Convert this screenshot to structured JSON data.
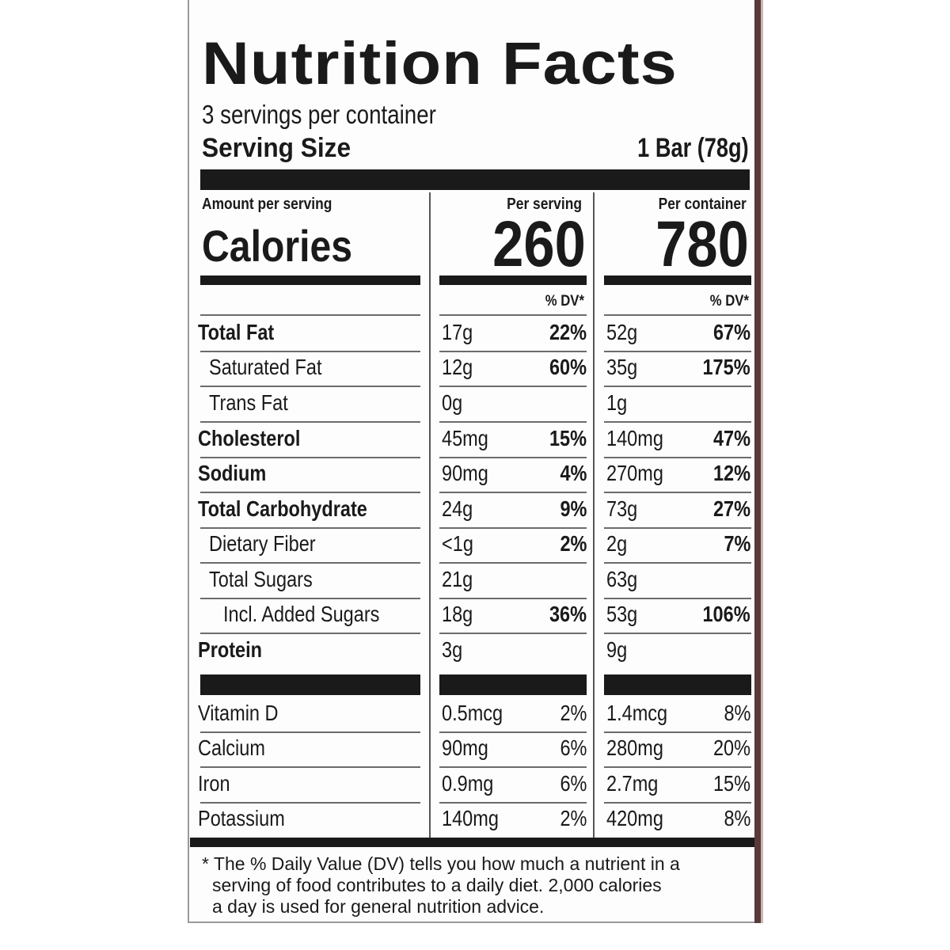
{
  "label": {
    "title": "Nutrition Facts",
    "servings_per_container": "3 servings per container",
    "serving_size_label": "Serving Size",
    "serving_size_value": "1 Bar (78g)",
    "amount_per_serving": "Amount per serving",
    "per_serving_header": "Per serving",
    "per_container_header": "Per container",
    "calories_label": "Calories",
    "calories_per_serving": "260",
    "calories_per_container": "780",
    "dv_header": "% DV*",
    "footnote": [
      "* The % Daily Value (DV) tells you how much a nutrient in a",
      "serving of food contributes to a daily diet. 2,000 calories",
      "a day is used for general nutrition advice."
    ]
  },
  "nutrients": [
    {
      "name": "Total Fat",
      "serving_amount": "17g",
      "serving_dv": "22%",
      "container_amount": "52g",
      "container_dv": "67%"
    },
    {
      "name": "Saturated Fat",
      "serving_amount": "12g",
      "serving_dv": "60%",
      "container_amount": "35g",
      "container_dv": "175%"
    },
    {
      "name": "Trans Fat",
      "serving_amount": "0g",
      "serving_dv": "",
      "container_amount": "1g",
      "container_dv": ""
    },
    {
      "name": "Cholesterol",
      "serving_amount": "45mg",
      "serving_dv": "15%",
      "container_amount": "140mg",
      "container_dv": "47%"
    },
    {
      "name": "Sodium",
      "serving_amount": "90mg",
      "serving_dv": "4%",
      "container_amount": "270mg",
      "container_dv": "12%"
    },
    {
      "name": "Total Carbohydrate",
      "serving_amount": "24g",
      "serving_dv": "9%",
      "container_amount": "73g",
      "container_dv": "27%"
    },
    {
      "name": "Dietary Fiber",
      "serving_amount": "<1g",
      "serving_dv": "2%",
      "container_amount": "2g",
      "container_dv": "7%"
    },
    {
      "name": "Total Sugars",
      "serving_amount": "21g",
      "serving_dv": "",
      "container_amount": "63g",
      "container_dv": ""
    },
    {
      "name": "Incl. Added Sugars",
      "serving_amount": "18g",
      "serving_dv": "36%",
      "container_amount": "53g",
      "container_dv": "106%"
    },
    {
      "name": "Protein",
      "serving_amount": "3g",
      "serving_dv": "",
      "container_amount": "9g",
      "container_dv": ""
    }
  ],
  "vitamins": [
    {
      "name": "Vitamin D",
      "serving_amount": "0.5mcg",
      "serving_dv": "2%",
      "container_amount": "1.4mcg",
      "container_dv": "8%"
    },
    {
      "name": "Calcium",
      "serving_amount": "90mg",
      "serving_dv": "6%",
      "container_amount": "280mg",
      "container_dv": "20%"
    },
    {
      "name": "Iron",
      "serving_amount": "0.9mg",
      "serving_dv": "6%",
      "container_amount": "2.7mg",
      "container_dv": "15%"
    },
    {
      "name": "Potassium",
      "serving_amount": "140mg",
      "serving_dv": "2%",
      "container_amount": "420mg",
      "container_dv": "8%"
    }
  ]
}
